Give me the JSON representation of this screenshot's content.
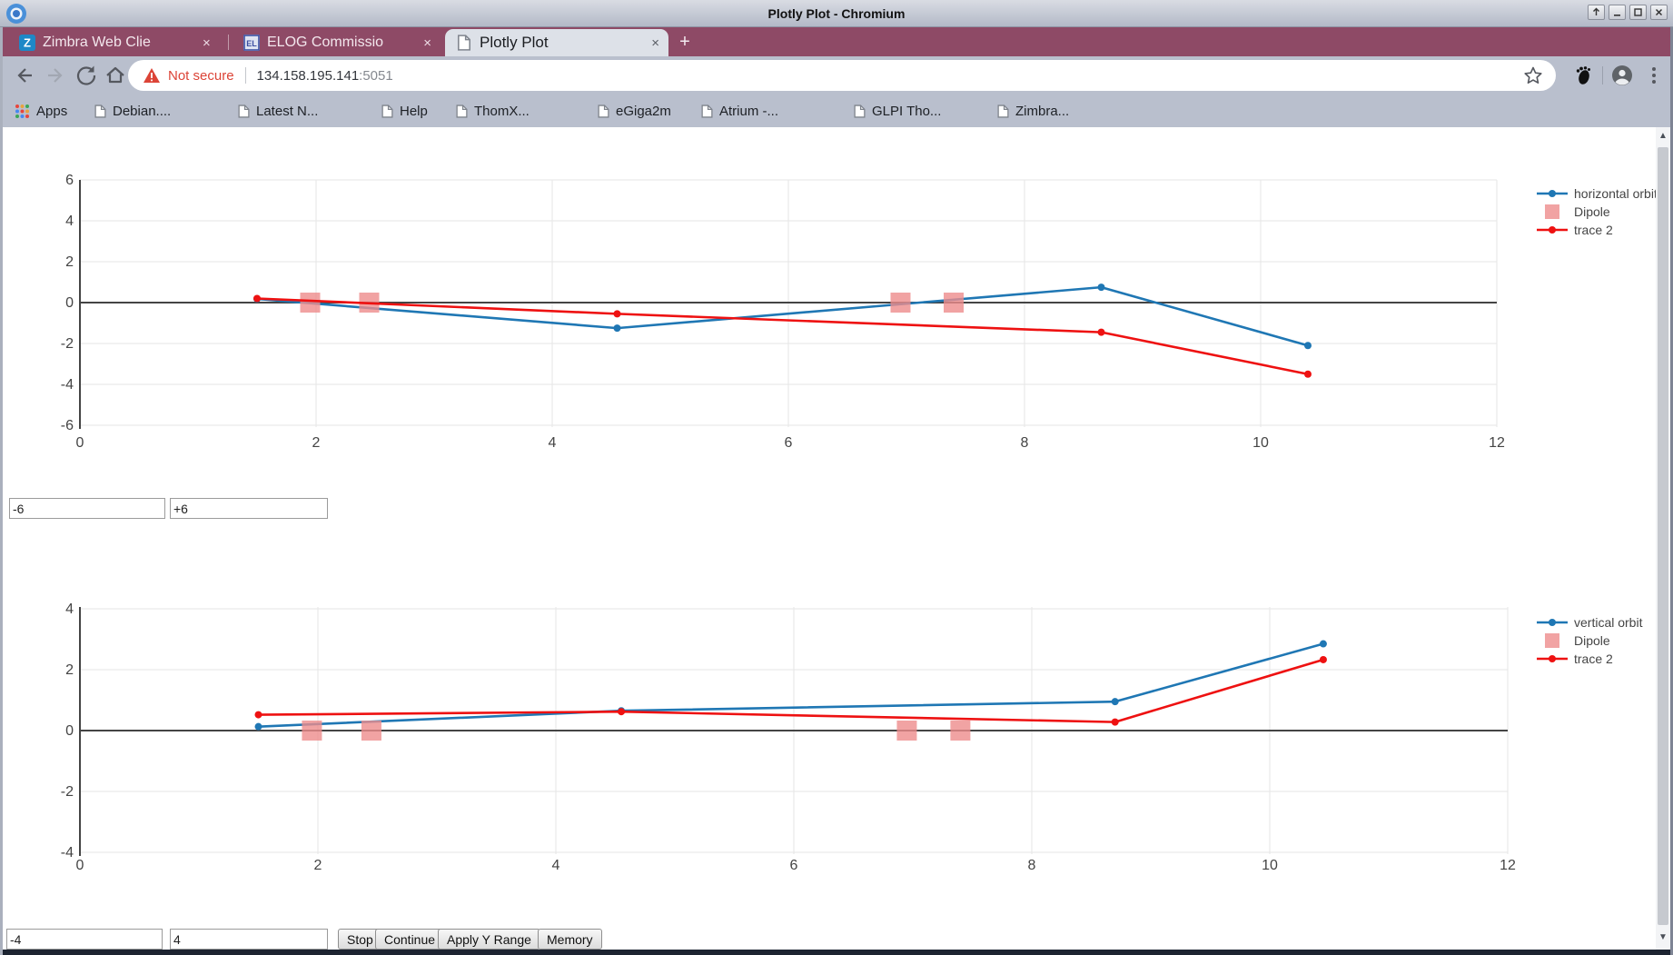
{
  "window": {
    "title": "Plotly Plot - Chromium",
    "controls": {
      "raise": "↑",
      "minimize": "–",
      "maximize": "❒",
      "close": "✕"
    }
  },
  "tabs": [
    {
      "label": "Zimbra Web Clie",
      "favicon": "zimbra-Z",
      "close": "×"
    },
    {
      "label": "ELOG Commissio",
      "favicon": "elog-EL",
      "close": "×"
    },
    {
      "label": "Plotly Plot",
      "favicon": "document",
      "close": "×"
    }
  ],
  "new_tab_label": "+",
  "address_bar": {
    "security_warning": "Not secure",
    "url_host": "134.158.195.141",
    "url_port": ":5051"
  },
  "bookmarks": {
    "apps_label": "Apps",
    "items": [
      "Debian....",
      "Latest N...",
      "Help",
      "ThomX...",
      "eGiga2m",
      "Atrium -...",
      "GLPI Tho...",
      "Zimbra..."
    ]
  },
  "controls_mid": {
    "ymin": "-6",
    "ymax": "+6"
  },
  "controls_bottom": {
    "ymin": "-4",
    "ymax": "4",
    "buttons": [
      "Stop",
      "Continue",
      "Apply Y Range",
      "Memory"
    ]
  },
  "colors": {
    "blue_trace": "#1f77b4",
    "red_trace": "#ee1111",
    "dipole_pink": "#ee8c8c",
    "tick_text": "#444444",
    "grid": "#e6e6e6",
    "zeroline": "#444444"
  },
  "chart_data": [
    {
      "type": "line",
      "title": "",
      "xlabel": "",
      "ylabel": "",
      "xlim": [
        0,
        12
      ],
      "ylim": [
        -6,
        6
      ],
      "xticks": [
        0,
        2,
        4,
        6,
        8,
        10,
        12
      ],
      "yticks": [
        -6,
        -4,
        -2,
        0,
        2,
        4,
        6
      ],
      "grid": true,
      "legend_position": "right",
      "series": [
        {
          "name": "horizontal orbit",
          "style": "line+markers",
          "color": "#1f77b4",
          "x": [
            1.5,
            4.55,
            8.65,
            10.4
          ],
          "y": [
            0.18,
            -1.25,
            0.75,
            -2.1
          ]
        },
        {
          "name": "Dipole",
          "style": "square-markers",
          "color": "#ee8c8c",
          "x": [
            1.95,
            2.45,
            6.95,
            7.4
          ],
          "y": [
            0,
            0,
            0,
            0
          ]
        },
        {
          "name": "trace 2",
          "style": "line+markers",
          "color": "#ee1111",
          "x": [
            1.5,
            4.55,
            8.65,
            10.4
          ],
          "y": [
            0.2,
            -0.55,
            -1.45,
            -3.5
          ]
        }
      ]
    },
    {
      "type": "line",
      "title": "",
      "xlabel": "",
      "ylabel": "",
      "xlim": [
        0,
        12
      ],
      "ylim": [
        -4,
        4
      ],
      "xticks": [
        0,
        2,
        4,
        6,
        8,
        10,
        12
      ],
      "yticks": [
        -4,
        -2,
        0,
        2,
        4
      ],
      "grid": true,
      "legend_position": "right",
      "series": [
        {
          "name": "vertical orbit",
          "style": "line+markers",
          "color": "#1f77b4",
          "x": [
            1.5,
            4.55,
            8.7,
            10.45
          ],
          "y": [
            0.13,
            0.65,
            0.95,
            2.85
          ]
        },
        {
          "name": "Dipole",
          "style": "square-markers",
          "color": "#ee8c8c",
          "x": [
            1.95,
            2.45,
            6.95,
            7.4
          ],
          "y": [
            0,
            0,
            0,
            0
          ]
        },
        {
          "name": "trace 2",
          "style": "line+markers",
          "color": "#ee1111",
          "x": [
            1.5,
            4.55,
            8.7,
            10.45
          ],
          "y": [
            0.52,
            0.62,
            0.28,
            2.33
          ]
        }
      ]
    }
  ]
}
